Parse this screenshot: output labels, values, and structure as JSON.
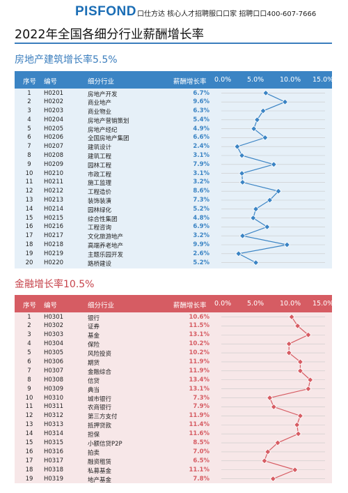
{
  "header": {
    "logo": "PISFOND",
    "tagline": "口仕方达 核心人才招聘服口口家 招聘口口400-607-7666"
  },
  "title": "2022年全国各细分行业薪酬增长率",
  "colors": {
    "blue": "#3b84c4",
    "blue_light": "#e6f0f8",
    "red": "#d65c63",
    "red_light": "#f7e7e8"
  },
  "chart_data": [
    {
      "type": "table",
      "title": "房地产建筑增长率5.5%",
      "columns": [
        "序号",
        "编号",
        "细分行业",
        "薪酬增长率"
      ],
      "axis_ticks": [
        "0.0%",
        "5.0%",
        "10.0%",
        "15.0%"
      ],
      "xlim": [
        0,
        15
      ],
      "rows": [
        {
          "no": "1",
          "code": "H0201",
          "name": "房地产开发",
          "value": 6.7,
          "label": "6.7%"
        },
        {
          "no": "2",
          "code": "H0202",
          "name": "商业地产",
          "value": 9.6,
          "label": "9.6%"
        },
        {
          "no": "3",
          "code": "H0203",
          "name": "商业物业",
          "value": 6.3,
          "label": "6.3%"
        },
        {
          "no": "4",
          "code": "H0204",
          "name": "房地产营销策划",
          "value": 5.4,
          "label": "5.4%"
        },
        {
          "no": "5",
          "code": "H0205",
          "name": "房地产经纪",
          "value": 4.9,
          "label": "4.9%"
        },
        {
          "no": "6",
          "code": "H0206",
          "name": "全国房地产集团",
          "value": 6.6,
          "label": "6.6%"
        },
        {
          "no": "7",
          "code": "H0207",
          "name": "建筑设计",
          "value": 2.4,
          "label": "2.4%"
        },
        {
          "no": "8",
          "code": "H0208",
          "name": "建筑工程",
          "value": 3.1,
          "label": "3.1%"
        },
        {
          "no": "9",
          "code": "H0209",
          "name": "园林工程",
          "value": 7.9,
          "label": "7.9%"
        },
        {
          "no": "10",
          "code": "H0210",
          "name": "市政工程",
          "value": 3.1,
          "label": "3.1%"
        },
        {
          "no": "11",
          "code": "H0211",
          "name": "施工监理",
          "value": 3.2,
          "label": "3.2%"
        },
        {
          "no": "12",
          "code": "H0212",
          "name": "工程造价",
          "value": 8.6,
          "label": "8.6%"
        },
        {
          "no": "13",
          "code": "H0213",
          "name": "装饰装潢",
          "value": 7.3,
          "label": "7.3%"
        },
        {
          "no": "14",
          "code": "H0214",
          "name": "园林绿化",
          "value": 5.2,
          "label": "5.2%"
        },
        {
          "no": "15",
          "code": "H0215",
          "name": "综合性集团",
          "value": 4.8,
          "label": "4.8%"
        },
        {
          "no": "16",
          "code": "H0216",
          "name": "工程咨询",
          "value": 6.9,
          "label": "6.9%"
        },
        {
          "no": "17",
          "code": "H0217",
          "name": "文化旅游地产",
          "value": 3.2,
          "label": "3.2%"
        },
        {
          "no": "18",
          "code": "H0218",
          "name": "高端养老地产",
          "value": 9.9,
          "label": "9.9%"
        },
        {
          "no": "19",
          "code": "H0219",
          "name": "主题乐园开发",
          "value": 2.6,
          "label": "2.6%"
        },
        {
          "no": "20",
          "code": "H0220",
          "name": "路桥建设",
          "value": 5.2,
          "label": "5.2%"
        }
      ]
    },
    {
      "type": "table",
      "title": "金融增长率10.5%",
      "columns": [
        "序号",
        "编号",
        "细分行业",
        "薪酬增长率"
      ],
      "axis_ticks": [
        "0.0%",
        "5.0%",
        "10.0%",
        "15.0%"
      ],
      "xlim": [
        0,
        15
      ],
      "rows": [
        {
          "no": "1",
          "code": "H0301",
          "name": "银行",
          "value": 10.6,
          "label": "10.6%"
        },
        {
          "no": "2",
          "code": "H0302",
          "name": "证券",
          "value": 11.5,
          "label": "11.5%"
        },
        {
          "no": "3",
          "code": "H0303",
          "name": "基金",
          "value": 13.1,
          "label": "13.1%"
        },
        {
          "no": "4",
          "code": "H0304",
          "name": "保险",
          "value": 10.2,
          "label": "10.2%"
        },
        {
          "no": "5",
          "code": "H0305",
          "name": "风险投资",
          "value": 10.2,
          "label": "10.2%"
        },
        {
          "no": "6",
          "code": "H0306",
          "name": "期货",
          "value": 11.9,
          "label": "11.9%"
        },
        {
          "no": "7",
          "code": "H0307",
          "name": "金融综合",
          "value": 11.9,
          "label": "11.9%"
        },
        {
          "no": "8",
          "code": "H0308",
          "name": "信贷",
          "value": 13.4,
          "label": "13.4%"
        },
        {
          "no": "9",
          "code": "H0309",
          "name": "典当",
          "value": 13.1,
          "label": "13.1%"
        },
        {
          "no": "10",
          "code": "H0310",
          "name": "城市银行",
          "value": 7.3,
          "label": "7.3%"
        },
        {
          "no": "11",
          "code": "H0311",
          "name": "农商银行",
          "value": 7.9,
          "label": "7.9%"
        },
        {
          "no": "12",
          "code": "H0312",
          "name": "第三方支付",
          "value": 11.9,
          "label": "11.9%"
        },
        {
          "no": "13",
          "code": "H0313",
          "name": "抵押贷款",
          "value": 11.4,
          "label": "11.4%"
        },
        {
          "no": "14",
          "code": "H0314",
          "name": "担保",
          "value": 11.6,
          "label": "11.6%"
        },
        {
          "no": "15",
          "code": "H0315",
          "name": "小额信贷P2P",
          "value": 8.5,
          "label": "8.5%"
        },
        {
          "no": "16",
          "code": "H0316",
          "name": "拍卖",
          "value": 7.0,
          "label": "7.0%"
        },
        {
          "no": "17",
          "code": "H0317",
          "name": "融资租赁",
          "value": 6.5,
          "label": "6.5%"
        },
        {
          "no": "18",
          "code": "H0318",
          "name": "私募基金",
          "value": 11.1,
          "label": "11.1%"
        },
        {
          "no": "19",
          "code": "H0319",
          "name": "地产基金",
          "value": 7.8,
          "label": "7.8%"
        }
      ]
    }
  ]
}
